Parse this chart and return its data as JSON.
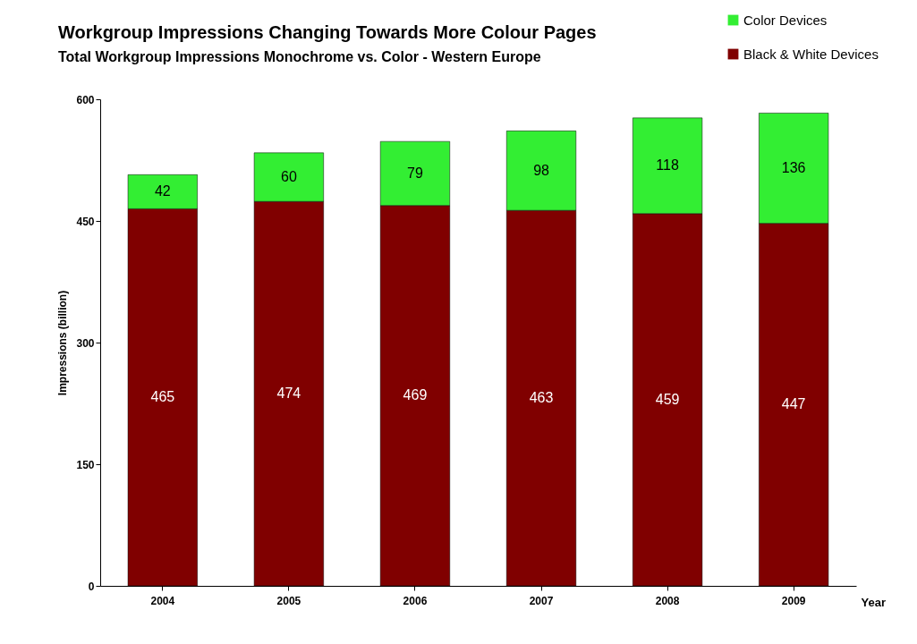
{
  "chart_data": {
    "type": "bar",
    "title": "Workgroup Impressions Changing Towards More Colour Pages",
    "subtitle": "Total Workgroup Impressions Monochrome vs. Color - Western Europe",
    "xlabel": "Year",
    "ylabel": "Impressions (billion)",
    "categories": [
      "2004",
      "2005",
      "2006",
      "2007",
      "2008",
      "2009"
    ],
    "series": [
      {
        "name": "Black & White Devices",
        "color": "#800000",
        "values": [
          465,
          474,
          469,
          463,
          459,
          447
        ]
      },
      {
        "name": "Color Devices",
        "color": "#33ee33",
        "values": [
          42,
          60,
          79,
          98,
          118,
          136
        ]
      }
    ],
    "stacked": true,
    "data_labels": true,
    "ylim": [
      0,
      600
    ],
    "yticks": [
      0,
      150,
      300,
      450,
      600
    ],
    "grid": false,
    "legend": "top right"
  }
}
